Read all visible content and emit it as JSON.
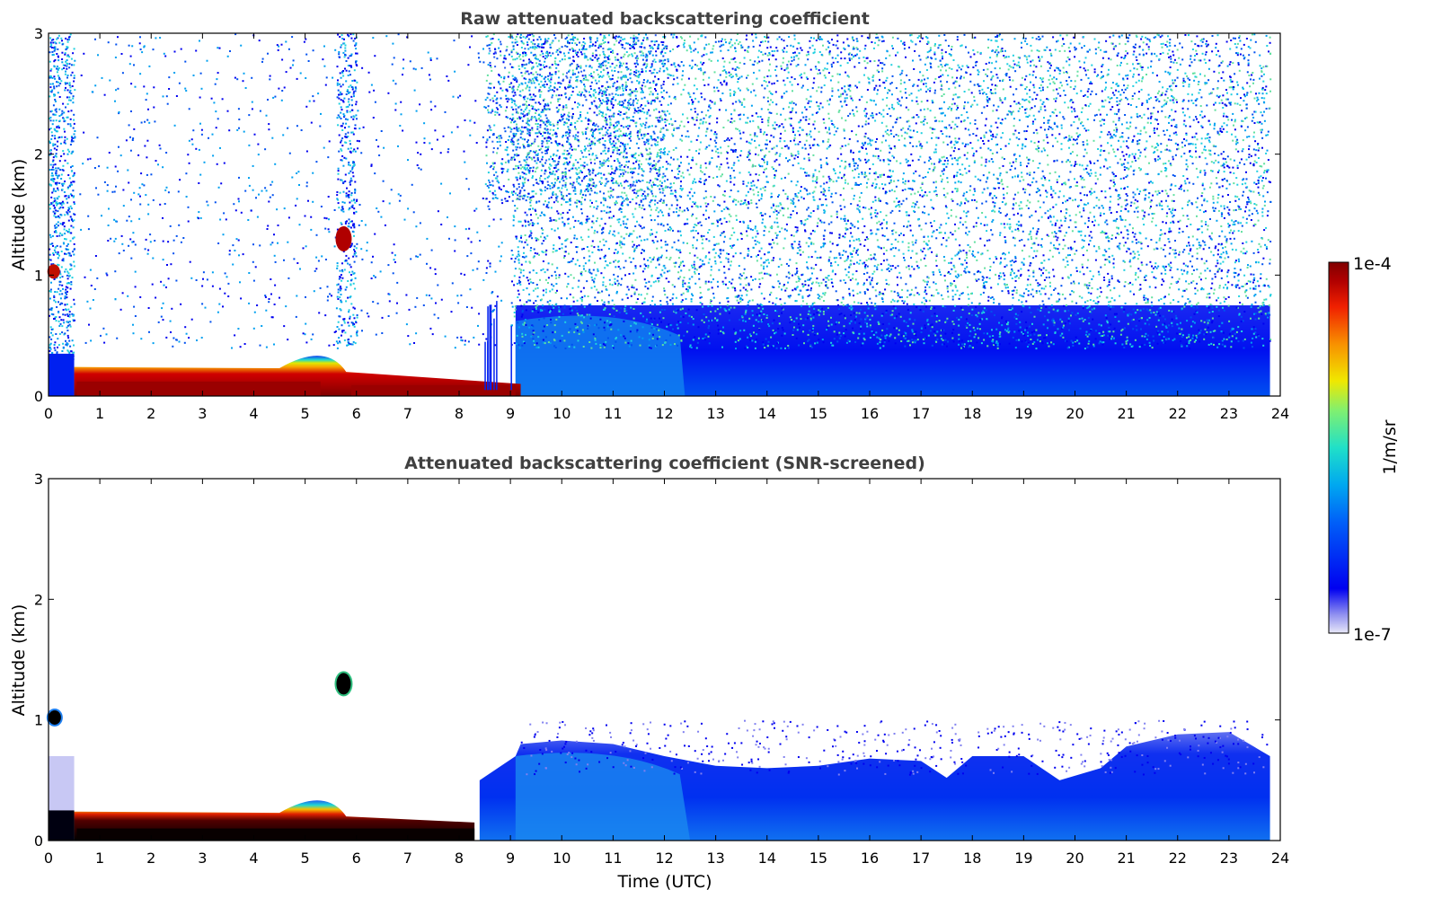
{
  "chart_data": [
    {
      "type": "heatmap",
      "title": "Raw attenuated backscattering coefficient",
      "xlabel": "",
      "ylabel": "Altitude (km)",
      "xlim": [
        0,
        24
      ],
      "ylim": [
        0,
        3
      ],
      "x_ticks": [
        "0",
        "1",
        "2",
        "3",
        "4",
        "5",
        "6",
        "7",
        "8",
        "9",
        "10",
        "11",
        "12",
        "13",
        "14",
        "15",
        "16",
        "17",
        "18",
        "19",
        "20",
        "21",
        "22",
        "23",
        "24"
      ],
      "y_ticks": [
        "0",
        "1",
        "2",
        "3"
      ],
      "data_end_time": 23.8,
      "features": [
        {
          "name": "surface-aerosol-layer",
          "t_start": 0.5,
          "t_end": 9.2,
          "alt_top_km": 0.2
        },
        {
          "name": "elevated-cloud-morning",
          "t": 0.1,
          "alt_km": 1.0
        },
        {
          "name": "elevated-cloud-0545",
          "t": 5.75,
          "alt_km": 1.3
        },
        {
          "name": "boundary-layer-daytime",
          "t_start": 9.0,
          "t_end": 23.8,
          "alt_top_km": 0.7
        }
      ]
    },
    {
      "type": "heatmap",
      "title": "Attenuated backscattering coefficient (SNR-screened)",
      "xlabel": "Time (UTC)",
      "ylabel": "Altitude (km)",
      "xlim": [
        0,
        24
      ],
      "ylim": [
        0,
        3
      ],
      "x_ticks": [
        "0",
        "1",
        "2",
        "3",
        "4",
        "5",
        "6",
        "7",
        "8",
        "9",
        "10",
        "11",
        "12",
        "13",
        "14",
        "15",
        "16",
        "17",
        "18",
        "19",
        "20",
        "21",
        "22",
        "23",
        "24"
      ],
      "y_ticks": [
        "0",
        "1",
        "2",
        "3"
      ],
      "data_end_time": 23.8
    }
  ],
  "colorbar": {
    "label": "1/m/sr",
    "max_label": "1e-4",
    "min_label": "1e-7",
    "colormap": [
      "#e8e8f8",
      "#9090f0",
      "#0000f0",
      "#0060f8",
      "#00a8f0",
      "#20e0c8",
      "#80f070",
      "#f0e800",
      "#f89000",
      "#f02000",
      "#b00000",
      "#800000"
    ]
  }
}
